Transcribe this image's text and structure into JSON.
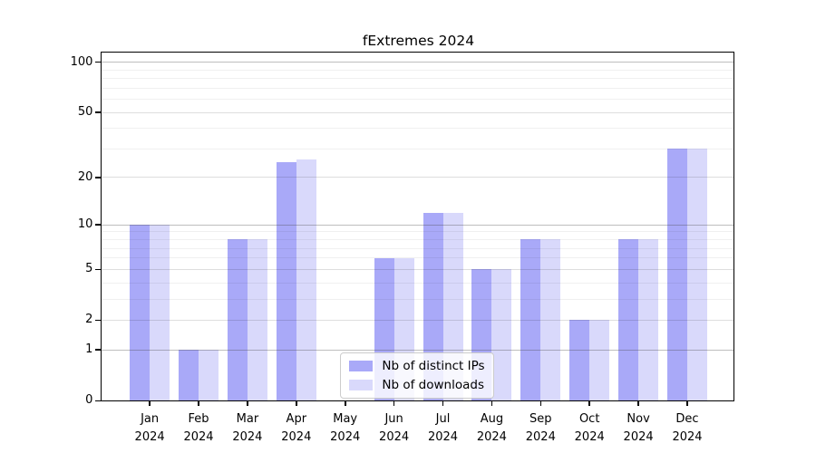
{
  "chart_data": {
    "type": "bar",
    "title": "fExtremes 2024",
    "xlabel": "",
    "ylabel": "",
    "categories": [
      "Jan",
      "Feb",
      "Mar",
      "Apr",
      "May",
      "Jun",
      "Jul",
      "Aug",
      "Sep",
      "Oct",
      "Nov",
      "Dec"
    ],
    "category_year": "2024",
    "series": [
      {
        "name": "Nb of distinct IPs",
        "color": "#a9a9f8",
        "values": [
          10,
          1,
          8,
          25,
          0,
          6,
          12,
          5,
          8,
          2,
          8,
          30
        ]
      },
      {
        "name": "Nb of downloads",
        "color": "#d9d9fb",
        "values": [
          10,
          1,
          8,
          26,
          0,
          6,
          12,
          5,
          8,
          2,
          8,
          30
        ]
      }
    ],
    "yticks": [
      0,
      1,
      2,
      5,
      10,
      20,
      50,
      100
    ],
    "ytick_labels": [
      "0",
      "1",
      "2",
      "5",
      "10",
      "20",
      "50",
      "100"
    ],
    "scale": "log1p",
    "ylim": [
      0,
      114
    ],
    "ylim_top_log1p": 4.742,
    "grid": {
      "on": true,
      "major": [
        1,
        10,
        100
      ],
      "mid": [
        2,
        5,
        20,
        50
      ],
      "minor": [
        3,
        4,
        6,
        7,
        8,
        9,
        30,
        40,
        60,
        70,
        80,
        90
      ]
    },
    "legend_position": "bottom-center"
  }
}
